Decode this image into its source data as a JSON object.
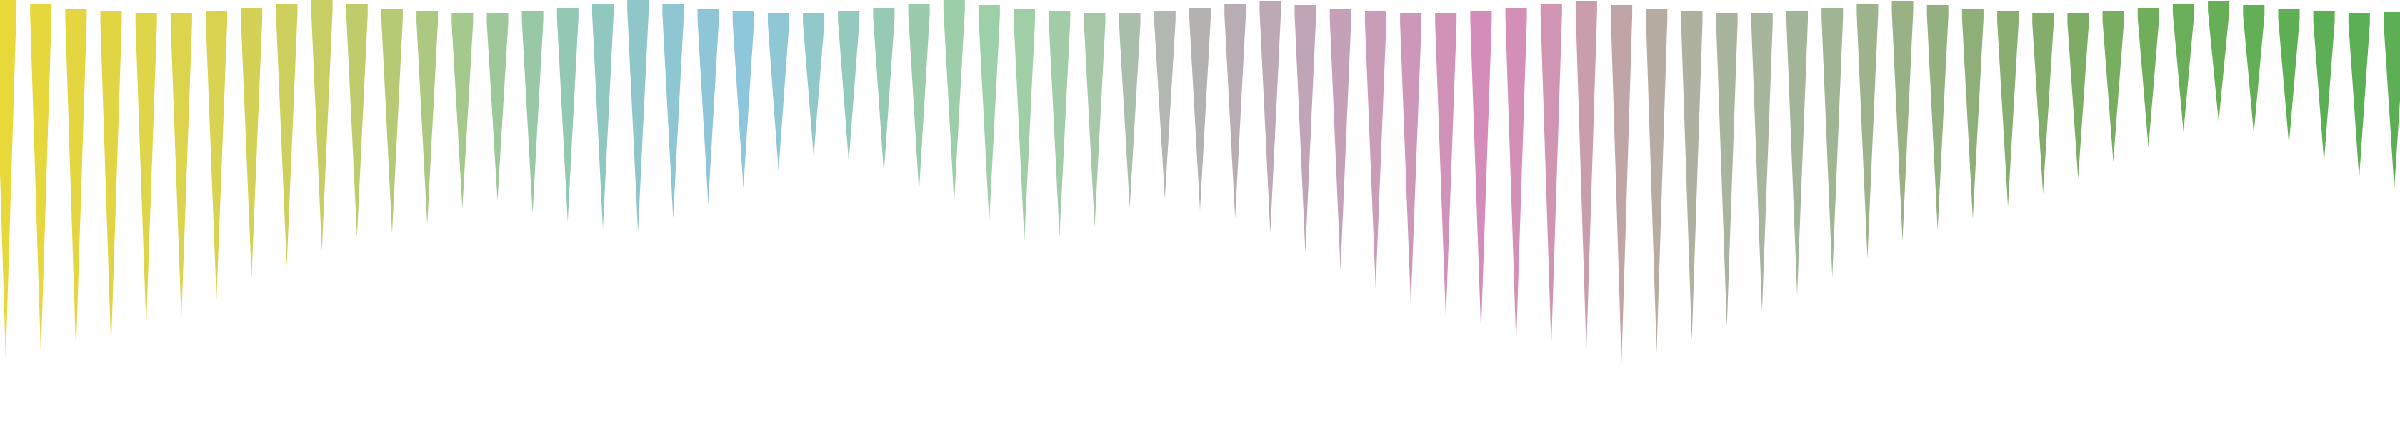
{
  "figure": {
    "description_kind": "row of downward-pointing tapered spikes with square caps",
    "spike_count": 69,
    "palette": {
      "yellow": "#e8d83a",
      "blue": "#8ec6dc",
      "green_teal": "#9ccfa9",
      "pink": "#d48cb8",
      "green": "#5caf55"
    },
    "colors": [
      "#e8d83a",
      "#e6d73d",
      "#e3d640",
      "#e1d544",
      "#dfd548",
      "#dcd44c",
      "#d8d351",
      "#d3d156",
      "#cdd05c",
      "#c6ce64",
      "#bfcc6c",
      "#b6ca76",
      "#adc981",
      "#a5c88d",
      "#9ec899",
      "#98c8a6",
      "#93c8b3",
      "#90c7bf",
      "#8ec6c9",
      "#8ec6d2",
      "#8ec6d8",
      "#8ec6dc",
      "#8fc7d4",
      "#91c8c9",
      "#94c9bd",
      "#97cab2",
      "#9acbab",
      "#9ccfa9",
      "#9dcfa8",
      "#9fcea7",
      "#a2cba8",
      "#a6c8a9",
      "#aabfab",
      "#b0b8af",
      "#b4b2b0",
      "#b8adb3",
      "#bca9b5",
      "#c0a5b6",
      "#c4a1b7",
      "#c99db8",
      "#cd97b8",
      "#d192b8",
      "#d48cb8",
      "#d48fb6",
      "#d095b1",
      "#c99dab",
      "#c0a5a6",
      "#b7aca2",
      "#aeb19f",
      "#a8b49d",
      "#a6b59b",
      "#a3b598",
      "#a0b593",
      "#9cb38c",
      "#98b286",
      "#93b07f",
      "#8eaf78",
      "#89ae71",
      "#83ad6b",
      "#7dad65",
      "#77ae60",
      "#71ae5c",
      "#6bae59",
      "#66af57",
      "#62af56",
      "#5faf55",
      "#5daf55",
      "#5caf55",
      "#5caf55"
    ],
    "depths": [
      0.94,
      0.92,
      0.9,
      0.88,
      0.82,
      0.8,
      0.75,
      0.7,
      0.68,
      0.65,
      0.6,
      0.58,
      0.55,
      0.5,
      0.48,
      0.52,
      0.55,
      0.58,
      0.6,
      0.55,
      0.5,
      0.45,
      0.4,
      0.36,
      0.38,
      0.42,
      0.48,
      0.52,
      0.56,
      0.6,
      0.58,
      0.55,
      0.5,
      0.48,
      0.52,
      0.55,
      0.6,
      0.64,
      0.68,
      0.72,
      0.76,
      0.8,
      0.84,
      0.88,
      0.9,
      0.92,
      0.94,
      0.9,
      0.86,
      0.82,
      0.78,
      0.74,
      0.7,
      0.66,
      0.62,
      0.58,
      0.54,
      0.5,
      0.46,
      0.42,
      0.38,
      0.35,
      0.32,
      0.3,
      0.32,
      0.34,
      0.38,
      0.42,
      0.45
    ]
  }
}
